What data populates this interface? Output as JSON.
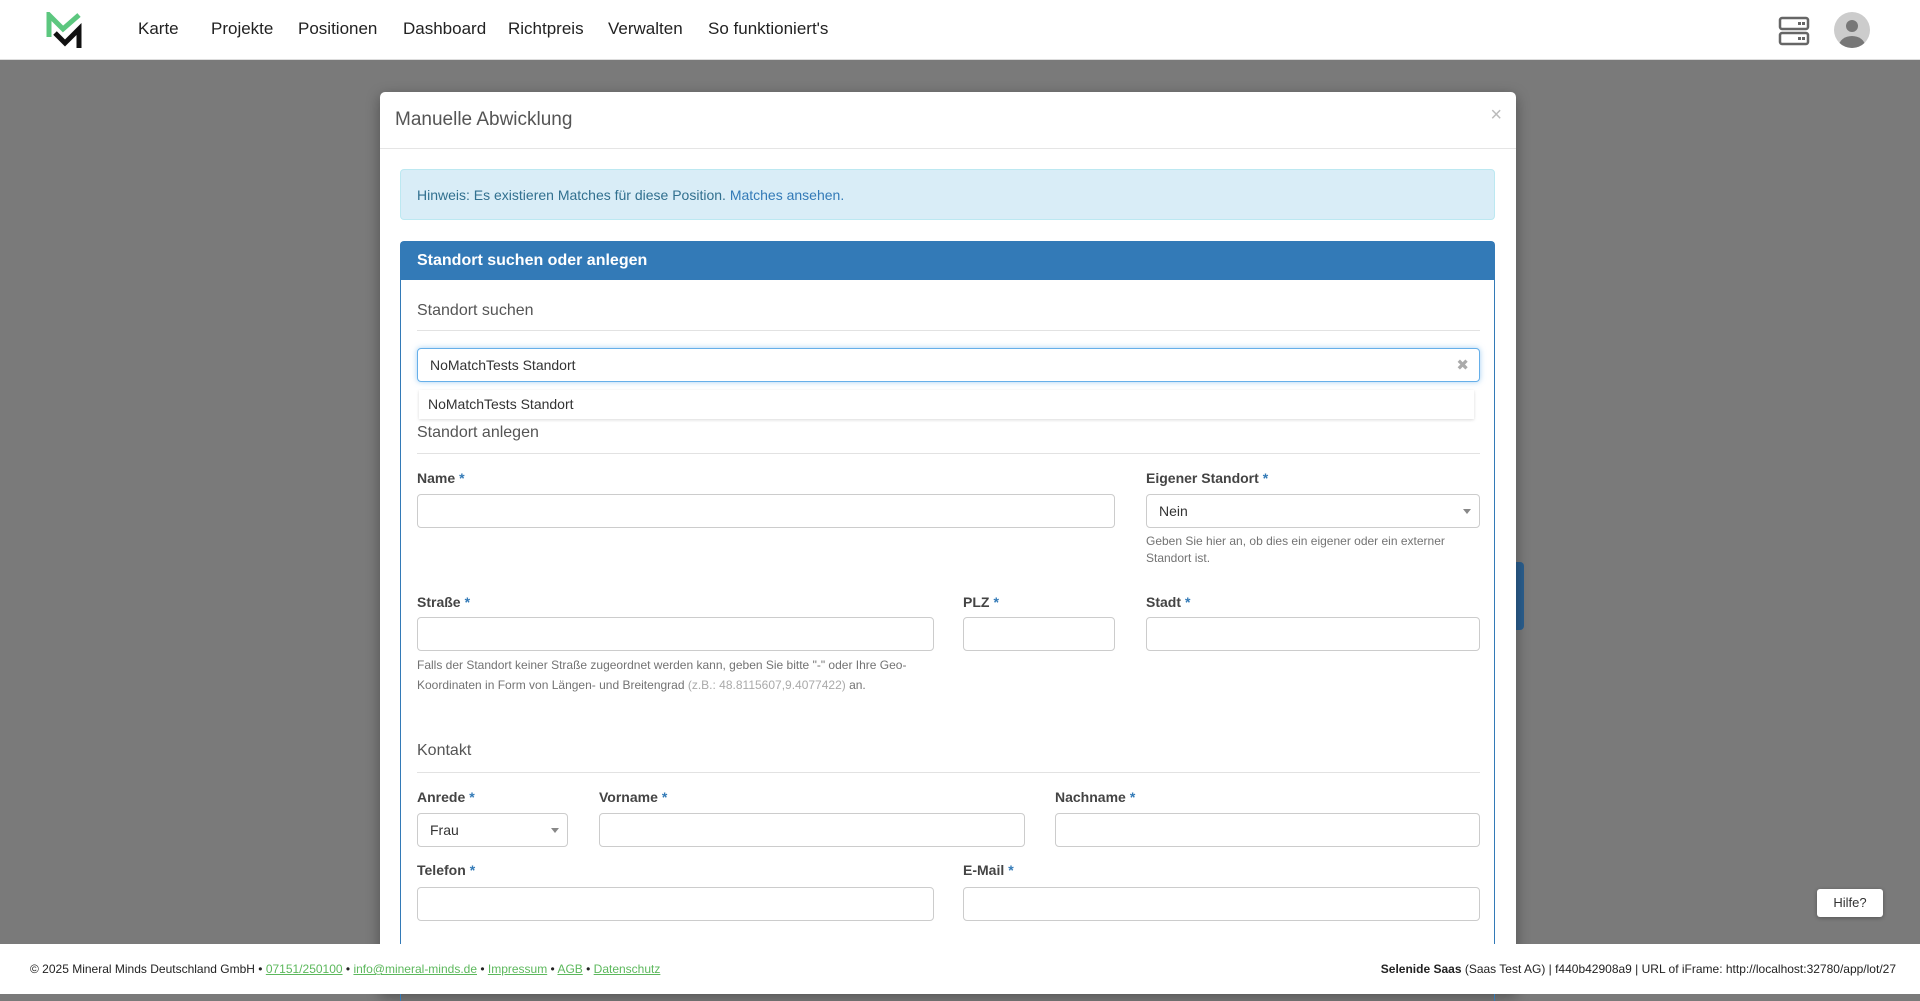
{
  "colors": {
    "primary": "#337ab7",
    "logo_green": "#5cc77f",
    "link_green": "#5cb85c",
    "alert_bg": "#d9edf7"
  },
  "nav": {
    "logo": "MM",
    "items": [
      "Karte",
      "Projekte",
      "Positionen",
      "Dashboard",
      "Richtpreis",
      "Verwalten",
      "So funktioniert's"
    ],
    "icons": [
      "server-icon",
      "user-avatar-icon"
    ]
  },
  "modal": {
    "title": "Manuelle Abwicklung",
    "close": "×",
    "alert": {
      "text": "Hinweis: Es existieren Matches für diese Position. ",
      "link": "Matches ansehen."
    },
    "panel_title": "Standort suchen oder anlegen",
    "search": {
      "heading": "Standort suchen",
      "value": "NoMatchTests Standort",
      "clear": "✖",
      "suggestions": [
        "NoMatchTests Standort"
      ]
    },
    "create": {
      "heading": "Standort anlegen",
      "name_label": "Name",
      "own_label": "Eigener Standort",
      "own_value": "Nein",
      "own_help": "Geben Sie hier an, ob dies ein eigener oder ein externer Standort ist.",
      "street_label": "Straße",
      "plz_label": "PLZ",
      "city_label": "Stadt",
      "street_help": "Falls der Standort keiner Straße zugeordnet werden kann, geben Sie bitte \"-\" oder Ihre Geo-Koordinaten in Form von Längen- und Breitengrad ",
      "street_help_example": "(z.B.: 48.8115607,9.4077422)",
      "street_help_end": " an."
    },
    "contact": {
      "heading": "Kontakt",
      "salutation_label": "Anrede",
      "salutation_value": "Frau",
      "firstname_label": "Vorname",
      "lastname_label": "Nachname",
      "phone_label": "Telefon",
      "email_label": "E-Mail"
    },
    "required_mark": "*"
  },
  "footer": {
    "copyright": "© 2025 Mineral Minds Deutschland GmbH • ",
    "phone": "07151/250100",
    "email": "info@mineral-minds.de",
    "impressum": "Impressum",
    "agb": "AGB",
    "datenschutz": "Datenschutz",
    "sep": " • ",
    "right_bold": "Selenide Saas",
    "right_rest": " (Saas Test AG) | f440b42908a9 | URL of iFrame: http://localhost:32780/app/lot/27"
  },
  "help_button": "Hilfe?"
}
